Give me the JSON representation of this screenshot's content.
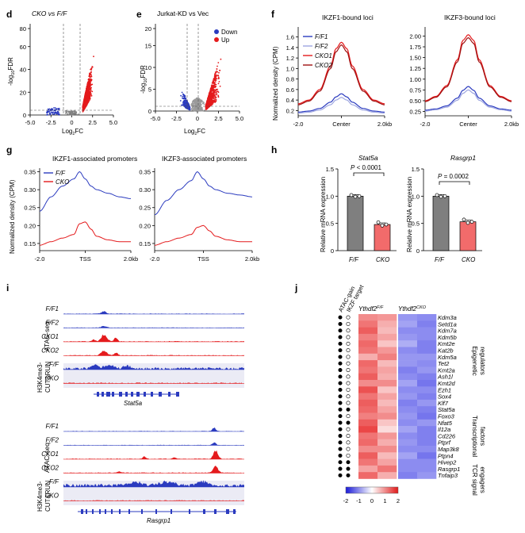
{
  "panel_labels": [
    "d",
    "e",
    "f",
    "g",
    "h",
    "i",
    "j"
  ],
  "colors": {
    "red": "#e41a1c",
    "blue": "#2b3bbf",
    "lightblue": "#9ea6e0",
    "darkred": "#a01010",
    "grey": "#7f7f7f",
    "gene_blue": "#2a56a8",
    "gene_orange": "#d2691e",
    "gene_olive": "#b8920a"
  },
  "panel_d": {
    "title_pre": "CKO vs ",
    "title_it": "F/F",
    "ylabel_pre": "-log",
    "ylabel_sub": "10",
    "ylabel_post": "FDR",
    "xlabel_pre": "Log",
    "xlabel_sub": "2",
    "xlabel_post": "FC",
    "xticks": [
      "-5.0",
      "-2.5",
      "0",
      "2.5",
      "5.0"
    ],
    "yticks": [
      "80",
      "60",
      "40",
      "20",
      "0"
    ]
  },
  "panel_e": {
    "title": "Jurkat-KD vs Vec",
    "legend_down": "Down",
    "legend_up": "Up",
    "ylabel_pre": "-log",
    "ylabel_sub": "10",
    "ylabel_post": "FDR",
    "xlabel_pre": "Log",
    "xlabel_sub": "2",
    "xlabel_post": "FC",
    "xticks": [
      "-5.0",
      "-2.5",
      "0",
      "2.5",
      "5.0"
    ],
    "yticks": [
      "20",
      "15",
      "10",
      "5",
      "0"
    ]
  },
  "panel_f": {
    "ylabel": "Normalized density (CPM)",
    "titles": [
      "IKZF1-bound loci",
      "IKZF3-bound loci"
    ],
    "legend": [
      "F/F1",
      "F/F2",
      "CKO1",
      "CKO2"
    ],
    "yticks1": [
      "1.6",
      "1.4",
      "1.2",
      "1.0",
      "0.8",
      "0.6",
      "0.4",
      "0.2"
    ],
    "yticks2": [
      "2.00",
      "1.75",
      "1.50",
      "1.25",
      "1.00",
      "0.75",
      "0.50",
      "0.25"
    ],
    "xticks": [
      "-2.0",
      "Center",
      "2.0kb"
    ]
  },
  "panel_g": {
    "ylabel": "Normalized density (CPM)",
    "titles": [
      "IKZF1-associated promoters",
      "IKZF3-associated promoters"
    ],
    "legend": [
      "F/F",
      "CKO"
    ],
    "yticks": [
      "0.35",
      "0.30",
      "0.25",
      "0.20",
      "0.15"
    ],
    "xticks": [
      "-2.0",
      "TSS",
      "2.0kb"
    ]
  },
  "panel_h": {
    "ylabel": "Relative mRNA expression",
    "genes": [
      "Stat5a",
      "Rasgrp1"
    ],
    "pvals": [
      "P < 0.0001",
      "P = 0.0002"
    ],
    "categories": [
      "F/F",
      "CKO"
    ],
    "yticks": [
      "1.5",
      "1.0",
      "0.5",
      "0"
    ]
  },
  "panel_i": {
    "tracks1": [
      "F/F1",
      "F/F2",
      "CKO1",
      "CKO2",
      "F/F",
      "CKO"
    ],
    "tracks2": [
      "F/F1",
      "F/F2",
      "CKO1",
      "CKO2",
      "F/F",
      "CKO"
    ],
    "group_atac": "ATAC-seq",
    "group_cr1": "H3K4me3-",
    "group_cr2": "CUT&RUN",
    "gene1": "Stat5a",
    "gene2": "Rasgrp1"
  },
  "panel_j": {
    "col_headers": [
      "ATAC-gain",
      "IKZF target"
    ],
    "group_wt_pre": "Ythdf2",
    "group_wt_sup": "F/F",
    "group_cko_pre": "Ythdf2",
    "group_cko_sup": "CKO",
    "genes": [
      "Kdm3a",
      "Setd1a",
      "Kdm7a",
      "Kdm5b",
      "Kmt2e",
      "Kat2b",
      "Kdm5a",
      "Tet2",
      "Kmt2a",
      "Ash1l",
      "Kmt2d",
      "Ezh1",
      "Sox4",
      "Klf7",
      "Stat5a",
      "Foxo3",
      "Nfat5",
      "Il12a",
      "Cd226",
      "Ptprf",
      "Map3k8",
      "Ptpn4",
      "Hivep2",
      "Rasgrp1",
      "Tnfaip3"
    ],
    "gene_groups": [
      0,
      0,
      0,
      0,
      0,
      0,
      0,
      0,
      0,
      0,
      0,
      0,
      1,
      1,
      1,
      1,
      1,
      1,
      1,
      1,
      2,
      2,
      2,
      2,
      2
    ],
    "atac_gain": [
      1,
      1,
      1,
      1,
      1,
      1,
      1,
      1,
      1,
      1,
      1,
      1,
      1,
      1,
      1,
      1,
      1,
      1,
      1,
      1,
      1,
      1,
      1,
      1,
      1
    ],
    "ikzf_target": [
      0,
      0,
      0,
      0,
      0,
      0,
      0,
      0,
      0,
      0,
      0,
      0,
      0,
      0,
      1,
      0,
      1,
      0,
      0,
      0,
      0,
      0,
      1,
      1,
      1
    ],
    "category_labels": [
      [
        "Epigenetic",
        "regulators"
      ],
      [
        "Transcriptional",
        "factors"
      ],
      [
        "TCR signal",
        "engagers"
      ]
    ],
    "colorbar_ticks": [
      "-2",
      "-1",
      "0",
      "1",
      "2"
    ]
  },
  "chart_data": [
    {
      "type": "scatter",
      "panel": "d",
      "title": "CKO vs F/F",
      "xlabel": "Log2FC",
      "ylabel": "-log10FDR",
      "xlim": [
        -5,
        5
      ],
      "ylim": [
        0,
        85
      ],
      "summary": "Volcano plot; upregulated genes (red) dominate at Log2FC 1–3; few downregulated genes (blue)"
    },
    {
      "type": "scatter",
      "panel": "e",
      "title": "Jurkat-KD vs Vec",
      "xlabel": "Log2FC",
      "ylabel": "-log10FDR",
      "xlim": [
        -5,
        5
      ],
      "ylim": [
        0,
        22
      ],
      "series": [
        "Down",
        "Up"
      ]
    },
    {
      "type": "line",
      "panel": "f",
      "title": "IKZF1-bound loci",
      "ylabel": "Normalized density (CPM)",
      "x": [
        -2,
        -1.5,
        -1,
        -0.5,
        -0.25,
        0,
        0.25,
        0.5,
        1,
        1.5,
        2
      ],
      "ylim": [
        0.1,
        1.7
      ],
      "series": [
        {
          "name": "F/F1",
          "values": [
            0.17,
            0.19,
            0.24,
            0.36,
            0.46,
            0.52,
            0.46,
            0.36,
            0.24,
            0.19,
            0.17
          ]
        },
        {
          "name": "F/F2",
          "values": [
            0.15,
            0.17,
            0.21,
            0.31,
            0.4,
            0.45,
            0.4,
            0.31,
            0.21,
            0.17,
            0.15
          ]
        },
        {
          "name": "CKO1",
          "values": [
            0.33,
            0.4,
            0.6,
            1.05,
            1.38,
            1.5,
            1.38,
            1.05,
            0.6,
            0.4,
            0.33
          ]
        },
        {
          "name": "CKO2",
          "values": [
            0.31,
            0.38,
            0.57,
            1.0,
            1.32,
            1.45,
            1.32,
            1.0,
            0.57,
            0.38,
            0.31
          ]
        }
      ]
    },
    {
      "type": "line",
      "panel": "f",
      "title": "IKZF3-bound loci",
      "ylabel": "Normalized density (CPM)",
      "x": [
        -2,
        -1.5,
        -1,
        -0.5,
        -0.25,
        0,
        0.25,
        0.5,
        1,
        1.5,
        2
      ],
      "ylim": [
        0.15,
        2.1
      ],
      "series": [
        {
          "name": "F/F1",
          "values": [
            0.28,
            0.31,
            0.38,
            0.56,
            0.74,
            0.83,
            0.74,
            0.56,
            0.38,
            0.31,
            0.28
          ]
        },
        {
          "name": "F/F2",
          "values": [
            0.26,
            0.29,
            0.35,
            0.51,
            0.67,
            0.75,
            0.67,
            0.51,
            0.35,
            0.29,
            0.26
          ]
        },
        {
          "name": "CKO1",
          "values": [
            0.5,
            0.6,
            0.85,
            1.45,
            1.9,
            2.03,
            1.9,
            1.45,
            0.85,
            0.6,
            0.5
          ]
        },
        {
          "name": "CKO2",
          "values": [
            0.48,
            0.58,
            0.82,
            1.4,
            1.83,
            1.96,
            1.83,
            1.4,
            0.82,
            0.58,
            0.48
          ]
        }
      ]
    },
    {
      "type": "line",
      "panel": "g",
      "title": "IKZF1-associated promoters",
      "ylabel": "Normalized density (CPM)",
      "x": [
        -2,
        -1.5,
        -1,
        -0.5,
        -0.25,
        0,
        0.25,
        0.5,
        1,
        1.5,
        2
      ],
      "ylim": [
        0.13,
        0.36
      ],
      "series": [
        {
          "name": "F/F",
          "values": [
            0.24,
            0.28,
            0.31,
            0.33,
            0.35,
            0.33,
            0.31,
            0.3,
            0.29,
            0.28,
            0.275
          ]
        },
        {
          "name": "CKO",
          "values": [
            0.145,
            0.155,
            0.165,
            0.175,
            0.205,
            0.21,
            0.19,
            0.17,
            0.16,
            0.155,
            0.155
          ]
        }
      ]
    },
    {
      "type": "line",
      "panel": "g",
      "title": "IKZF3-associated promoters",
      "ylabel": "Normalized density (CPM)",
      "x": [
        -2,
        -1.5,
        -1,
        -0.5,
        -0.25,
        0,
        0.25,
        0.5,
        1,
        1.5,
        2
      ],
      "ylim": [
        0.13,
        0.36
      ],
      "series": [
        {
          "name": "F/F",
          "values": [
            0.23,
            0.27,
            0.3,
            0.325,
            0.35,
            0.33,
            0.31,
            0.3,
            0.29,
            0.285,
            0.28
          ]
        },
        {
          "name": "CKO",
          "values": [
            0.145,
            0.155,
            0.165,
            0.175,
            0.195,
            0.2,
            0.185,
            0.17,
            0.16,
            0.155,
            0.155
          ]
        }
      ]
    },
    {
      "type": "bar",
      "panel": "h",
      "title": "Stat5a",
      "ylabel": "Relative mRNA expression",
      "categories": [
        "F/F",
        "CKO"
      ],
      "values": [
        1.0,
        0.48
      ],
      "ylim": [
        0,
        1.5
      ],
      "annotation": "P < 0.0001"
    },
    {
      "type": "bar",
      "panel": "h",
      "title": "Rasgrp1",
      "ylabel": "Relative mRNA expression",
      "categories": [
        "F/F",
        "CKO"
      ],
      "values": [
        1.0,
        0.53
      ],
      "ylim": [
        0,
        1.5
      ],
      "annotation": "P = 0.0002"
    },
    {
      "type": "heatmap",
      "panel": "j",
      "rows": [
        "Kdm3a",
        "Setd1a",
        "Kdm7a",
        "Kdm5b",
        "Kmt2e",
        "Kat2b",
        "Kdm5a",
        "Tet2",
        "Kmt2a",
        "Ash1l",
        "Kmt2d",
        "Ezh1",
        "Sox4",
        "Klf7",
        "Stat5a",
        "Foxo3",
        "Nfat5",
        "Il12a",
        "Cd226",
        "Ptprf",
        "Map3k8",
        "Ptpn4",
        "Hivep2",
        "Rasgrp1",
        "Tnfaip3"
      ],
      "columns": [
        "Ythdf2 F/F rep1",
        "Ythdf2 F/F rep2",
        "Ythdf2 CKO rep1",
        "Ythdf2 CKO rep2"
      ],
      "values": [
        [
          1.0,
          0.9,
          -0.9,
          -1.0
        ],
        [
          1.2,
          0.7,
          -0.8,
          -1.1
        ],
        [
          1.4,
          0.6,
          -1.0,
          -1.0
        ],
        [
          1.1,
          0.8,
          -0.9,
          -1.0
        ],
        [
          1.3,
          0.5,
          -0.7,
          -1.1
        ],
        [
          1.2,
          0.9,
          -1.0,
          -1.1
        ],
        [
          0.7,
          1.1,
          -0.9,
          -0.9
        ],
        [
          1.3,
          0.6,
          -0.9,
          -1.0
        ],
        [
          1.2,
          0.8,
          -1.1,
          -0.9
        ],
        [
          1.4,
          0.7,
          -1.0,
          -1.1
        ],
        [
          1.0,
          1.0,
          -0.8,
          -1.2
        ],
        [
          1.5,
          0.5,
          -1.0,
          -1.0
        ],
        [
          1.2,
          0.8,
          -0.9,
          -1.1
        ],
        [
          1.4,
          0.6,
          -1.1,
          -0.9
        ],
        [
          1.3,
          0.8,
          -1.0,
          -1.1
        ],
        [
          1.1,
          1.0,
          -0.9,
          -1.2
        ],
        [
          1.4,
          0.5,
          -1.0,
          -0.9
        ],
        [
          1.6,
          0.3,
          -0.8,
          -1.1
        ],
        [
          1.2,
          0.9,
          -1.0,
          -1.1
        ],
        [
          1.3,
          0.7,
          -0.9,
          -1.1
        ],
        [
          1.0,
          1.0,
          -1.0,
          -1.0
        ],
        [
          1.4,
          0.6,
          -0.8,
          -1.2
        ],
        [
          1.2,
          0.8,
          -1.0,
          -1.0
        ],
        [
          0.8,
          1.2,
          -1.0,
          -1.0
        ],
        [
          1.3,
          0.7,
          -1.1,
          -0.9
        ]
      ],
      "colorbar": [
        -2,
        2
      ]
    }
  ]
}
